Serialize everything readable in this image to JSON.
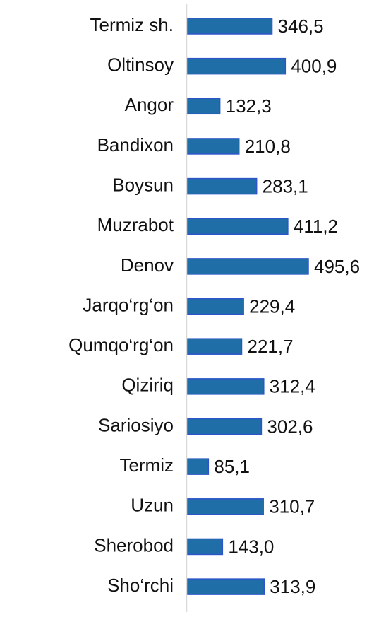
{
  "chart_data": {
    "type": "bar",
    "orientation": "horizontal",
    "categories": [
      "Termiz sh.",
      "Oltinsoy",
      "Angor",
      "Bandixon",
      "Boysun",
      "Muzrabot",
      "Denov",
      "Jarqo‘rg‘on",
      "Qumqo‘rg‘on",
      "Qiziriq",
      "Sariosiyo",
      "Termiz",
      "Uzun",
      "Sherobod",
      "Sho‘rchi"
    ],
    "values": [
      346.5,
      400.9,
      132.3,
      210.8,
      283.1,
      411.2,
      495.6,
      229.4,
      221.7,
      312.4,
      302.6,
      85.1,
      310.7,
      143.0,
      313.9
    ],
    "value_labels": [
      "346,5",
      "400,9",
      "132,3",
      "210,8",
      "283,1",
      "411,2",
      "495,6",
      "229,4",
      "221,7",
      "312,4",
      "302,6",
      "85,1",
      "310,7",
      "143,0",
      "313,9"
    ],
    "color": "#1f6ea8",
    "edge_color": "#2d55c9"
  }
}
